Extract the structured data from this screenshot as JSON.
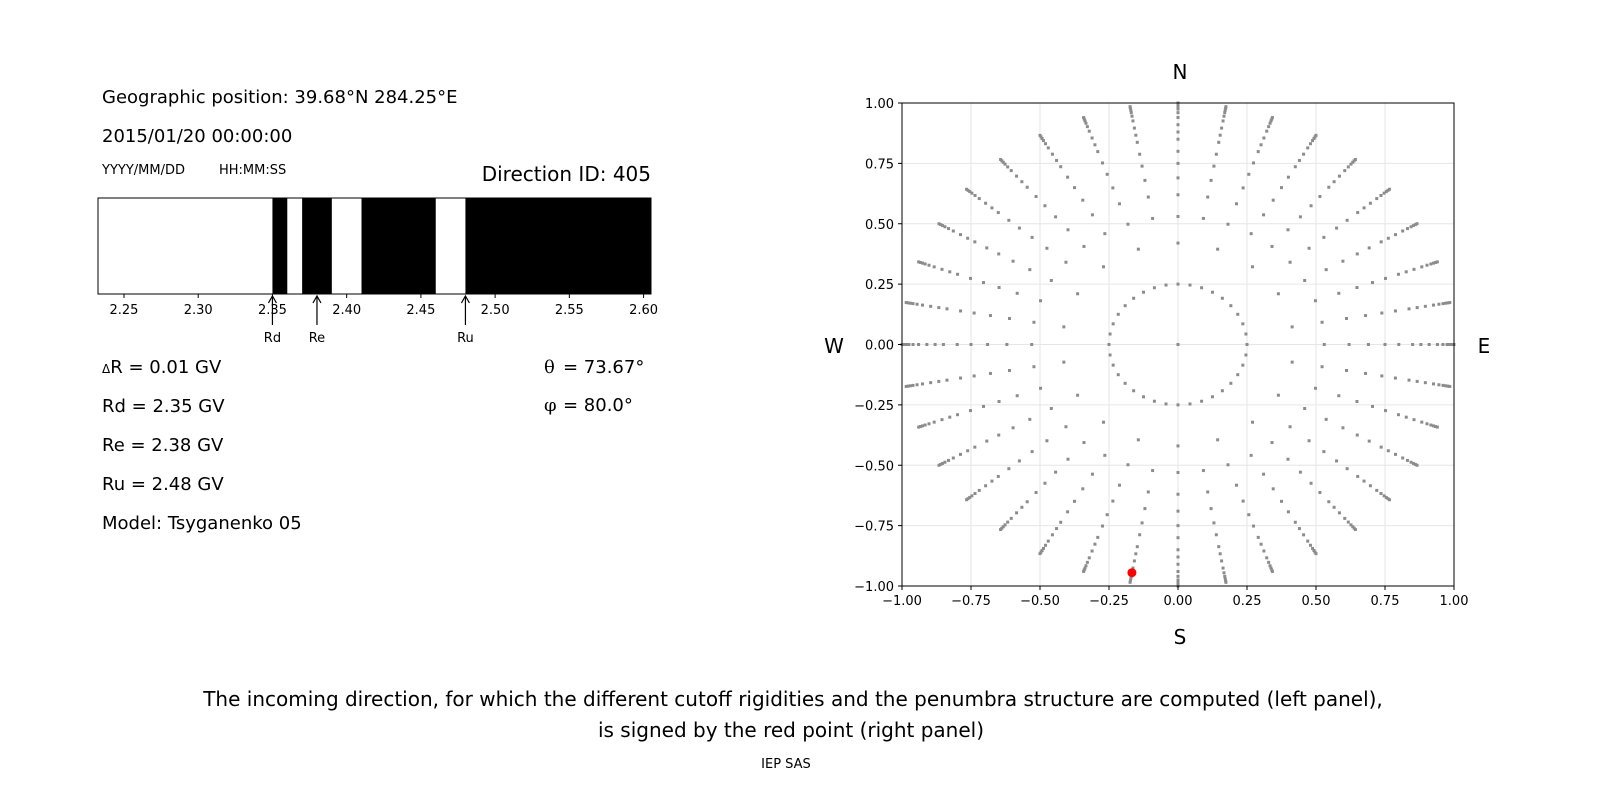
{
  "header": {
    "geo_position": "Geographic position: 39.68°N 284.25°E",
    "datetime": "2015/01/20 00:00:00",
    "date_format": "YYYY/MM/DD",
    "time_format": "HH:MM:SS",
    "direction_id": "Direction ID: 405"
  },
  "results": {
    "delta_r": "R = 0.01 GV",
    "delta_symbol": "Δ",
    "rd": "Rd = 2.35 GV",
    "re": "Re = 2.38 GV",
    "ru": "Ru = 2.48 GV",
    "model": "Model: Tsyganenko 05",
    "theta_symbol": "θ",
    "theta": "= 73.67°",
    "phi_symbol": "φ",
    "phi": "= 80.0°"
  },
  "compass": {
    "north": "N",
    "south": "S",
    "west": "W",
    "east": "E"
  },
  "caption": {
    "line1": "The incoming direction, for which the different cutoff rigidities and the penumbra structure are computed (left panel),",
    "line2": "is signed by the red point (right panel)",
    "credit": "IEP SAS"
  },
  "chart_data": [
    {
      "type": "penumbra-bar",
      "xlim": [
        2.2325,
        2.605
      ],
      "xticks": [
        2.25,
        2.3,
        2.35,
        2.4,
        2.45,
        2.5,
        2.55,
        2.6
      ],
      "xtick_labels": [
        "2.25",
        "2.30",
        "2.35",
        "2.40",
        "2.45",
        "2.50",
        "2.55",
        "2.60"
      ],
      "forbidden_bands": [
        [
          2.35,
          2.36
        ],
        [
          2.37,
          2.39
        ],
        [
          2.41,
          2.46
        ],
        [
          2.48,
          2.605
        ]
      ],
      "allowed_color": "#ffffff",
      "forbidden_color": "#000000",
      "markers": [
        {
          "label": "Rd",
          "value": 2.35
        },
        {
          "label": "Re",
          "value": 2.38
        },
        {
          "label": "Ru",
          "value": 2.48
        }
      ]
    },
    {
      "type": "scatter",
      "xlim": [
        -1,
        1
      ],
      "ylim": [
        -1,
        1
      ],
      "grid": true,
      "xticks": [
        "−1.00",
        "−0.75",
        "−0.50",
        "−0.25",
        "0.00",
        "0.25",
        "0.50",
        "0.75",
        "1.00"
      ],
      "yticks": [
        "1.00",
        "0.75",
        "0.50",
        "0.25",
        "0.00",
        "−0.25",
        "−0.50",
        "−0.75",
        "−1.00"
      ],
      "point_color": "#8c8c8c",
      "grid_layout": {
        "center_point": true,
        "inner_ring_radius": 0.25,
        "inner_ring_step_deg": 10,
        "ray_step_deg": 10,
        "ray_radii": [
          0.42,
          0.53,
          0.62,
          0.69,
          0.75,
          0.8,
          0.85,
          0.88,
          0.91,
          0.94,
          0.96,
          0.975,
          0.985,
          0.993,
          1.0
        ]
      },
      "selected_point": {
        "x": -0.167,
        "y": -0.945,
        "color": "#ff0000"
      }
    }
  ]
}
